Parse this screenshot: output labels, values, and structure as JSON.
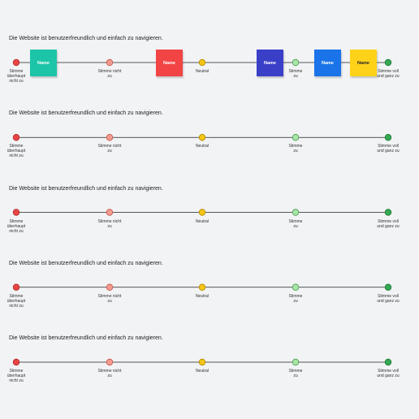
{
  "rows": [
    {
      "question": "Die Website ist benutzerfreundlich und einfach zu navigieren.",
      "labels": [
        "Stimme überhaupt nicht zu",
        "Stimme nicht zu",
        "Neutral",
        "Stimme zu",
        "Stimme voll und ganz zu"
      ],
      "notes": [
        "Name",
        "Name",
        "Name",
        "Name",
        "Name"
      ]
    },
    {
      "question": "Die Website ist benutzerfreundlich und einfach zu navigieren.",
      "labels": [
        "Stimme überhaupt nicht zu",
        "Stimme nicht zu",
        "Neutral",
        "Stimme zu",
        "Stimme voll und ganz zu"
      ]
    },
    {
      "question": "Die Website ist benutzerfreundlich und einfach zu navigieren.",
      "labels": [
        "Stimme überhaupt nicht zu",
        "Stimme nicht zu",
        "Neutral",
        "Stimme zu",
        "Stimme voll und ganz zu"
      ]
    },
    {
      "question": "Die Website ist benutzerfreundlich und einfach zu navigieren.",
      "labels": [
        "Stimme überhaupt nicht zu",
        "Stimme nicht zu",
        "Neutral",
        "Stimme zu",
        "Stimme voll und ganz zu"
      ]
    },
    {
      "question": "Die Website ist benutzerfreundlich und einfach zu navigieren.",
      "labels": [
        "Stimme überhaupt nicht zu",
        "Stimme nicht zu",
        "Neutral",
        "Stimme zu",
        "Stimme voll und ganz zu"
      ]
    }
  ]
}
